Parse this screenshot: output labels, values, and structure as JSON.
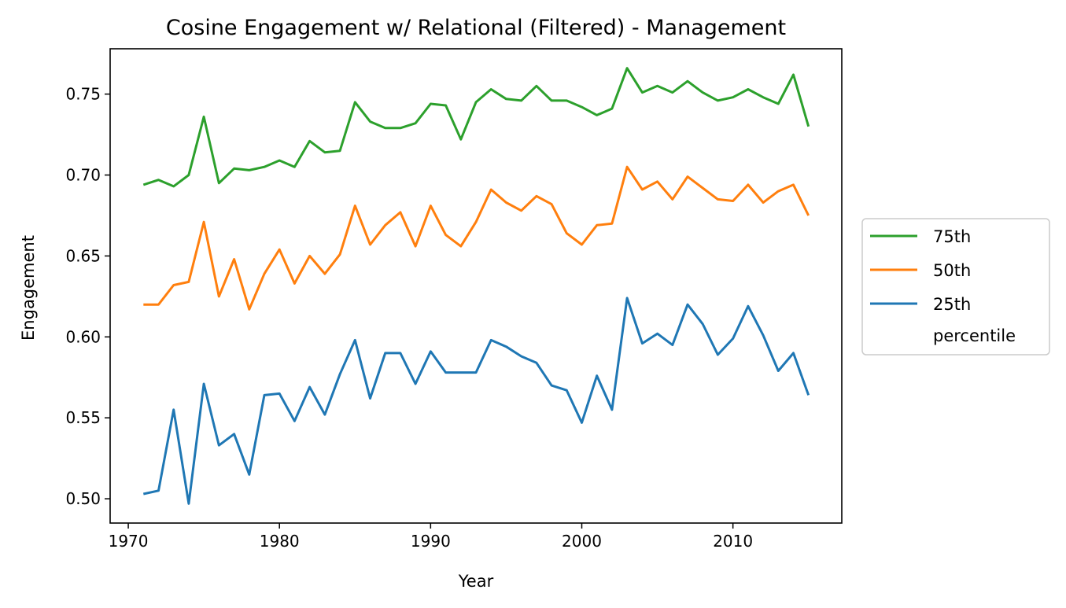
{
  "chart_data": {
    "type": "line",
    "title": "Cosine Engagement w/ Relational (Filtered) - Management",
    "xlabel": "Year",
    "ylabel": "Engagement",
    "xlim": [
      1968.8,
      2017.2
    ],
    "ylim": [
      0.485,
      0.778
    ],
    "xticks": [
      1970,
      1980,
      1990,
      2000,
      2010
    ],
    "xtick_labels": [
      "1970",
      "1980",
      "1990",
      "2000",
      "2010"
    ],
    "yticks": [
      0.5,
      0.55,
      0.6,
      0.65,
      0.7,
      0.75
    ],
    "ytick_labels": [
      "0.50",
      "0.55",
      "0.60",
      "0.65",
      "0.70",
      "0.75"
    ],
    "grid": false,
    "legend": {
      "placement": "outside-right",
      "footer": "percentile"
    },
    "x": [
      1971,
      1972,
      1973,
      1974,
      1975,
      1976,
      1977,
      1978,
      1979,
      1980,
      1981,
      1982,
      1983,
      1984,
      1985,
      1986,
      1987,
      1988,
      1989,
      1990,
      1991,
      1992,
      1993,
      1994,
      1995,
      1996,
      1997,
      1998,
      1999,
      2000,
      2001,
      2002,
      2003,
      2004,
      2005,
      2006,
      2007,
      2008,
      2009,
      2010,
      2011,
      2012,
      2013,
      2014,
      2015
    ],
    "series": [
      {
        "name": "75th",
        "color": "#2ca02c",
        "values": [
          0.694,
          0.697,
          0.693,
          0.7,
          0.736,
          0.695,
          0.704,
          0.703,
          0.705,
          0.709,
          0.705,
          0.721,
          0.714,
          0.715,
          0.745,
          0.733,
          0.729,
          0.729,
          0.732,
          0.744,
          0.743,
          0.722,
          0.745,
          0.753,
          0.747,
          0.746,
          0.755,
          0.746,
          0.746,
          0.742,
          0.737,
          0.741,
          0.766,
          0.751,
          0.755,
          0.751,
          0.758,
          0.751,
          0.746,
          0.748,
          0.753,
          0.748,
          0.744,
          0.762,
          0.73
        ]
      },
      {
        "name": "50th",
        "color": "#ff7f0e",
        "values": [
          0.62,
          0.62,
          0.632,
          0.634,
          0.671,
          0.625,
          0.648,
          0.617,
          0.639,
          0.654,
          0.633,
          0.65,
          0.639,
          0.651,
          0.681,
          0.657,
          0.669,
          0.677,
          0.656,
          0.681,
          0.663,
          0.656,
          0.671,
          0.691,
          0.683,
          0.678,
          0.687,
          0.682,
          0.664,
          0.657,
          0.669,
          0.67,
          0.705,
          0.691,
          0.696,
          0.685,
          0.699,
          0.692,
          0.685,
          0.684,
          0.694,
          0.683,
          0.69,
          0.694,
          0.675
        ]
      },
      {
        "name": "25th",
        "color": "#1f77b4",
        "values": [
          0.503,
          0.505,
          0.555,
          0.497,
          0.571,
          0.533,
          0.54,
          0.515,
          0.564,
          0.565,
          0.548,
          0.569,
          0.552,
          0.577,
          0.598,
          0.562,
          0.59,
          0.59,
          0.571,
          0.591,
          0.578,
          0.578,
          0.578,
          0.598,
          0.594,
          0.588,
          0.584,
          0.57,
          0.567,
          0.547,
          0.576,
          0.555,
          0.624,
          0.596,
          0.602,
          0.595,
          0.62,
          0.608,
          0.589,
          0.599,
          0.619,
          0.601,
          0.579,
          0.59,
          0.564
        ]
      }
    ]
  }
}
